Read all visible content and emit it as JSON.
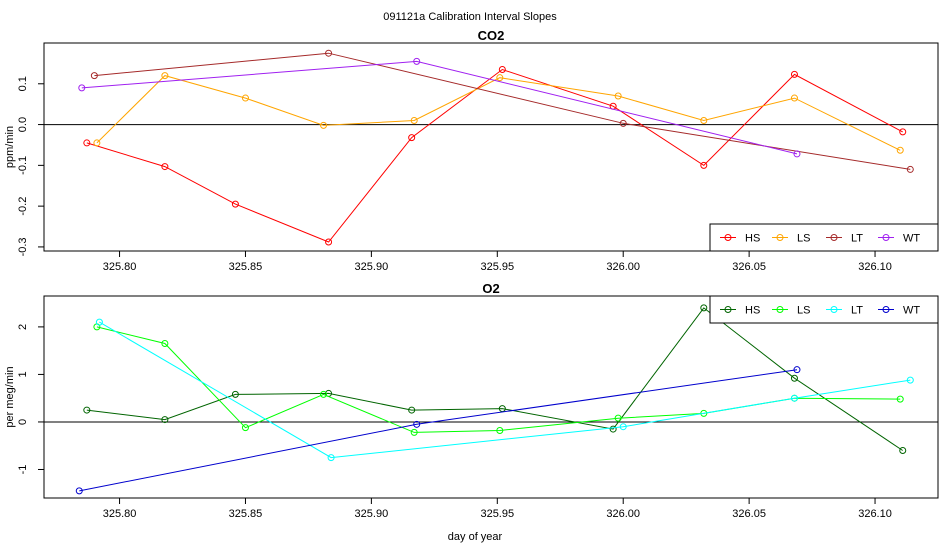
{
  "chart_data": {
    "type": "line",
    "title": "091121a   Calibration Interval Slopes",
    "xlabel": "day of year",
    "xlim": [
      325.77,
      326.125
    ],
    "x_ticks": [
      325.8,
      325.85,
      325.9,
      325.95,
      326.0,
      326.05,
      326.1
    ],
    "x_tick_labels": [
      "325.80",
      "325.85",
      "325.90",
      "325.95",
      "326.00",
      "326.05",
      "326.10"
    ],
    "panels": [
      {
        "title": "CO2",
        "ylabel": "ppm/min",
        "ylim": [
          -0.31,
          0.2
        ],
        "y_ticks": [
          -0.3,
          -0.2,
          -0.1,
          0.0,
          0.1
        ],
        "y_tick_labels": [
          "-0.3",
          "-0.2",
          "-0.1",
          "0.0",
          "0.1"
        ],
        "reference_line": 0,
        "legend_position": "bottom-right",
        "series": [
          {
            "name": "HS",
            "color": "#ff0000",
            "x": [
              325.787,
              325.818,
              325.846,
              325.883,
              325.916,
              325.952,
              325.996,
              326.032,
              326.068,
              326.111
            ],
            "y": [
              -0.045,
              -0.103,
              -0.195,
              -0.288,
              -0.032,
              0.135,
              0.045,
              -0.1,
              0.123,
              -0.018
            ]
          },
          {
            "name": "LS",
            "color": "#ffa500",
            "x": [
              325.791,
              325.818,
              325.85,
              325.881,
              325.917,
              325.951,
              325.998,
              326.032,
              326.068,
              326.11
            ],
            "y": [
              -0.045,
              0.12,
              0.065,
              -0.002,
              0.01,
              0.115,
              0.07,
              0.01,
              0.065,
              -0.063
            ]
          },
          {
            "name": "LT",
            "color": "#a52a2a",
            "x": [
              325.79,
              325.883,
              326.0,
              326.114
            ],
            "y": [
              0.12,
              0.175,
              0.003,
              -0.11
            ]
          },
          {
            "name": "WT",
            "color": "#a020f0",
            "x": [
              325.785,
              325.918,
              326.069
            ],
            "y": [
              0.09,
              0.155,
              -0.072
            ]
          }
        ]
      },
      {
        "title": "O2",
        "ylabel": "per meg/min",
        "ylim": [
          -1.6,
          2.65
        ],
        "y_ticks": [
          -1,
          0,
          1,
          2
        ],
        "y_tick_labels": [
          "-1",
          "0",
          "1",
          "2"
        ],
        "reference_line": 0,
        "legend_position": "top-right",
        "series": [
          {
            "name": "HS",
            "color": "#006400",
            "x": [
              325.787,
              325.818,
              325.846,
              325.883,
              325.916,
              325.952,
              325.996,
              326.032,
              326.068,
              326.111
            ],
            "y": [
              0.25,
              0.05,
              0.58,
              0.6,
              0.25,
              0.28,
              -0.15,
              2.4,
              0.92,
              -0.6
            ]
          },
          {
            "name": "LS",
            "color": "#00ff00",
            "x": [
              325.791,
              325.818,
              325.85,
              325.881,
              325.917,
              325.951,
              325.998,
              326.032,
              326.068,
              326.11
            ],
            "y": [
              2.0,
              1.65,
              -0.12,
              0.58,
              -0.22,
              -0.18,
              0.08,
              0.18,
              0.5,
              0.48
            ]
          },
          {
            "name": "LT",
            "color": "#00ffff",
            "x": [
              325.792,
              325.884,
              326.0,
              326.068,
              326.114
            ],
            "y": [
              2.1,
              -0.75,
              -0.1,
              0.5,
              0.88
            ]
          },
          {
            "name": "WT",
            "color": "#0000cd",
            "x": [
              325.784,
              325.918,
              326.069
            ],
            "y": [
              -1.45,
              -0.05,
              1.1
            ]
          }
        ]
      }
    ]
  }
}
